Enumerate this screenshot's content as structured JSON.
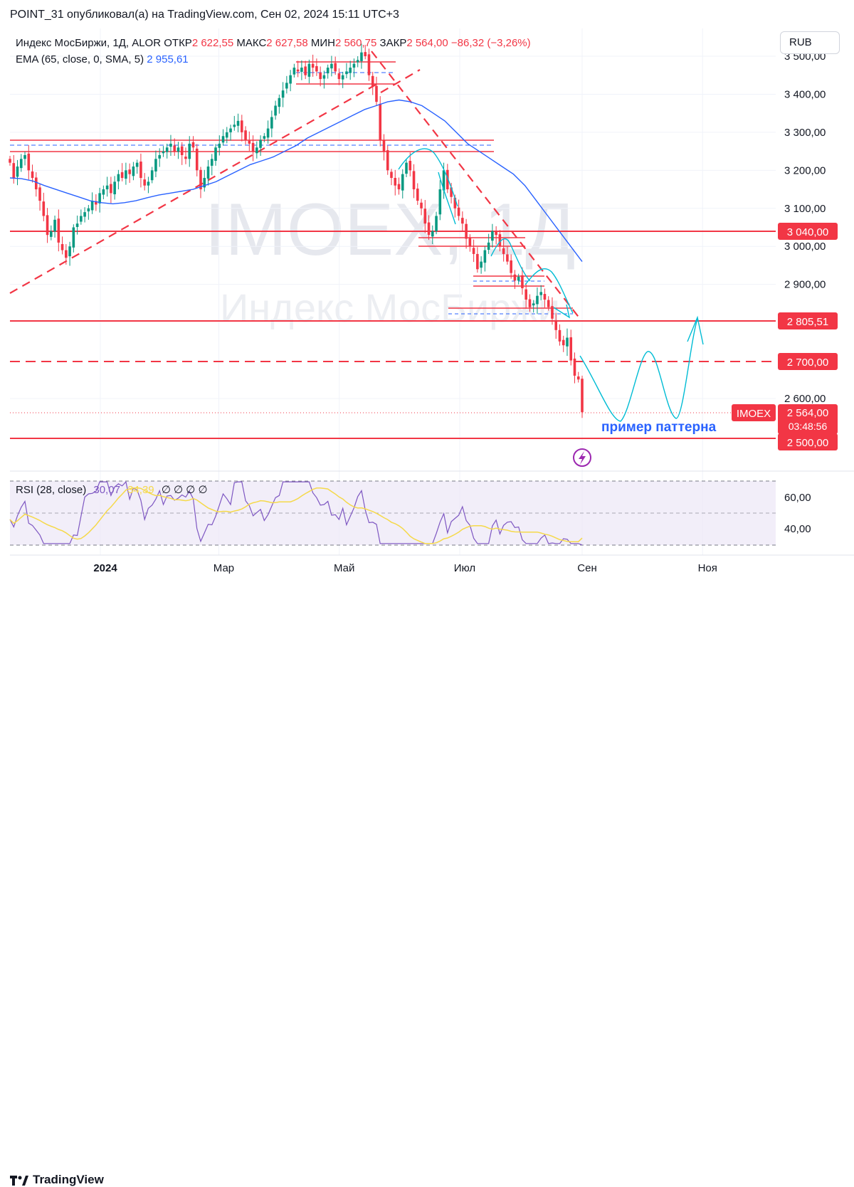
{
  "header": {
    "title": "POINT_31 опубликовал(а) на TradingView.com, Сен 02, 2024 15:11 UTC+3"
  },
  "legend": {
    "symbol": "Индекс МосБиржи, 1Д, ALOR",
    "open_label": "ОТКР",
    "open": "2 622,55",
    "high_label": "МАКС",
    "high": "2 627,58",
    "low_label": "МИН",
    "low": "2 560,75",
    "close_label": "ЗАКР",
    "close": "2 564,00",
    "change": "−86,32 (−3,26%)",
    "ema_label": "EMA (65, close, 0, SMA, 5)",
    "ema_value": "2 955,61"
  },
  "currency_button": "RUB",
  "watermark": {
    "ticker": "IMOEX, 1Д",
    "name": "Индекс МосБиржи"
  },
  "annotation": "пример паттерна",
  "price_badges": {
    "level_3040": "3 040,00",
    "level_2805": "2 805,51",
    "level_2700": "2 700,00",
    "level_2500": "2 500,00",
    "last_symbol": "IMOEX",
    "last_price": "2 564,00",
    "countdown": "03:48:56"
  },
  "rsi_legend": {
    "label": "RSI (28, close)",
    "rsi": "30,07",
    "ma": "34,39",
    "empty": "∅ ∅ ∅ ∅"
  },
  "footer": {
    "brand": "TradingView"
  },
  "colors": {
    "up": "#089981",
    "down": "#f23645",
    "ema": "#2962ff",
    "pattern": "#00bcd4",
    "level": "#f23645",
    "rsi": "#7e57c2",
    "rsi_ma": "#f5d94a"
  },
  "chart_data": {
    "type": "candlestick",
    "y_axis_ticks": [
      "3 500,00",
      "3 400,00",
      "3 300,00",
      "3 200,00",
      "3 100,00",
      "3 000,00",
      "2 900,00",
      "2 600,00"
    ],
    "y_axis_values": [
      3500,
      3400,
      3300,
      3200,
      3100,
      3000,
      2900,
      2600
    ],
    "x_axis_labels": [
      "2024",
      "Мар",
      "Май",
      "Июл",
      "Сен",
      "Ноя"
    ],
    "x_axis_dates": [
      "2024-01-01",
      "2024-03-01",
      "2024-05-01",
      "2024-07-01",
      "2024-09-01",
      "2024-11-01"
    ],
    "x_start": "2023-11-23",
    "ylim": [
      2450,
      3560
    ],
    "series_close": [
      3220,
      3180,
      3210,
      3230,
      3240,
      3200,
      3180,
      3150,
      3120,
      3080,
      3030,
      3040,
      3070,
      3010,
      2990,
      2970,
      3000,
      3050,
      3060,
      3080,
      3090,
      3100,
      3120,
      3110,
      3140,
      3150,
      3160,
      3140,
      3170,
      3190,
      3180,
      3200,
      3190,
      3210,
      3220,
      3180,
      3160,
      3170,
      3200,
      3230,
      3240,
      3250,
      3260,
      3270,
      3250,
      3260,
      3240,
      3230,
      3270,
      3260,
      3200,
      3150,
      3180,
      3210,
      3230,
      3260,
      3270,
      3290,
      3300,
      3310,
      3320,
      3330,
      3300,
      3280,
      3270,
      3250,
      3260,
      3280,
      3290,
      3310,
      3340,
      3370,
      3390,
      3410,
      3430,
      3450,
      3470,
      3460,
      3470,
      3450,
      3480,
      3470,
      3460,
      3440,
      3450,
      3470,
      3480,
      3460,
      3440,
      3450,
      3460,
      3470,
      3480,
      3490,
      3510,
      3500,
      3450,
      3420,
      3380,
      3280,
      3250,
      3200,
      3180,
      3160,
      3150,
      3190,
      3220,
      3200,
      3150,
      3120,
      3100,
      3060,
      3030,
      3040,
      3080,
      3150,
      3200,
      3150,
      3130,
      3100,
      3080,
      3060,
      3020,
      3000,
      2980,
      2940,
      2960,
      2990,
      3010,
      3040,
      3030,
      3000,
      2980,
      2960,
      2930,
      2910,
      2920,
      2890,
      2860,
      2840,
      2850,
      2870,
      2880,
      2860,
      2840,
      2810,
      2780,
      2750,
      2740,
      2760,
      2700,
      2660,
      2650,
      2564
    ],
    "ema_65": [
      3180,
      3178,
      3172,
      3160,
      3150,
      3140,
      3130,
      3120,
      3115,
      3112,
      3115,
      3120,
      3128,
      3135,
      3140,
      3145,
      3150,
      3160,
      3170,
      3185,
      3200,
      3215,
      3225,
      3235,
      3250,
      3265,
      3285,
      3300,
      3315,
      3330,
      3345,
      3360,
      3370,
      3380,
      3385,
      3380,
      3370,
      3350,
      3330,
      3300,
      3270,
      3250,
      3230,
      3210,
      3190,
      3160,
      3120,
      3080,
      3040,
      3000,
      2960
    ],
    "levels": [
      3040.0,
      2805.51,
      2700.0,
      2500.0
    ],
    "last_price": 2564.0,
    "rsi": {
      "ylim": [
        25,
        75
      ],
      "ticks": [
        "60,00",
        "40,00"
      ],
      "tick_values": [
        60,
        40
      ],
      "band": [
        30,
        70
      ],
      "last": 30.07,
      "ma_last": 34.39
    }
  }
}
